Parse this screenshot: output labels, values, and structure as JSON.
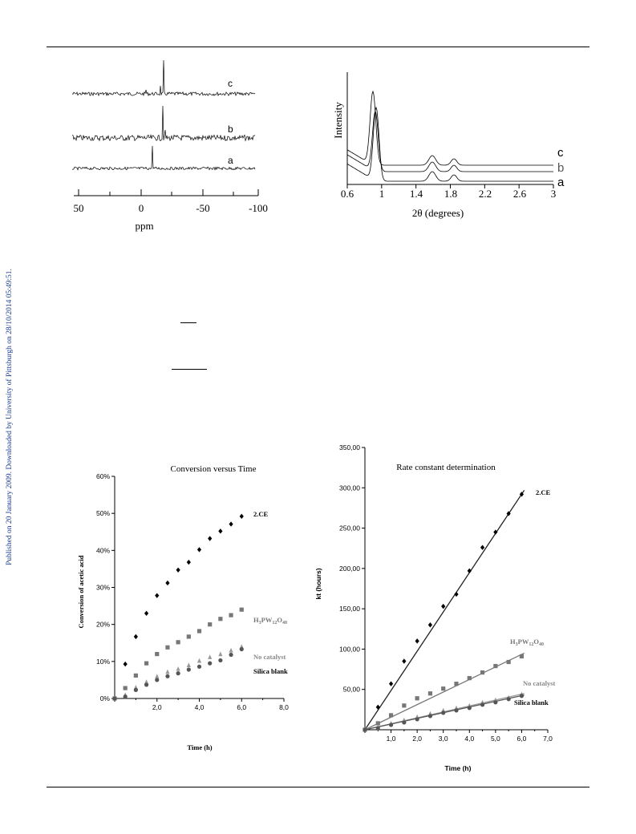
{
  "side_note": "Published on 20 January 2009. Downloaded by University of Pittsburgh on 28/10/2014 05:49:51.",
  "nmr": {
    "xlabel": "ppm",
    "ticks": [
      "50",
      "0",
      "-50",
      "-100"
    ],
    "traces": [
      "c",
      "b",
      "a"
    ]
  },
  "xrd": {
    "ylabel": "Intensity",
    "xlabel": "2θ (degrees)",
    "ticks": [
      "0.6",
      "1",
      "1.4",
      "1.8",
      "2.2",
      "2.6",
      "3"
    ],
    "traces": [
      "c",
      "b",
      "a"
    ]
  },
  "chart_data": [
    {
      "type": "scatter",
      "title": "Conversion versus Time",
      "xlabel": "Time (h)",
      "ylabel": "Conversion of acetic acid",
      "xlim": [
        0,
        8
      ],
      "ylim": [
        0,
        60
      ],
      "xticks": [
        "2,0",
        "4,0",
        "6,0",
        "8,0"
      ],
      "yticks": [
        "0%",
        "10%",
        "20%",
        "30%",
        "40%",
        "50%",
        "60%"
      ],
      "series": [
        {
          "name": "2.CE",
          "marker": "diamond",
          "color": "#000000",
          "x": [
            0,
            0.5,
            1.0,
            1.5,
            2.0,
            2.5,
            3.0,
            3.5,
            4.0,
            4.5,
            5.0,
            5.5,
            6.0
          ],
          "y": [
            0,
            9.3,
            16.7,
            23.0,
            27.8,
            31.2,
            34.7,
            36.8,
            40.2,
            43.2,
            45.2,
            47.1,
            49.2
          ]
        },
        {
          "name": "H3PW12O40",
          "marker": "square",
          "color": "#777777",
          "x": [
            0,
            0.5,
            1.0,
            1.5,
            2.0,
            2.5,
            3.0,
            3.5,
            4.0,
            4.5,
            5.0,
            5.5,
            6.0
          ],
          "y": [
            0,
            2.8,
            6.2,
            9.5,
            12.0,
            13.8,
            15.2,
            16.7,
            18.2,
            20.0,
            21.5,
            22.5,
            24.0
          ]
        },
        {
          "name": "No catalyst",
          "marker": "triangle",
          "color": "#999999",
          "x": [
            0,
            0.5,
            1.0,
            1.5,
            2.0,
            2.5,
            3.0,
            3.5,
            4.0,
            4.5,
            5.0,
            5.5,
            6.0
          ],
          "y": [
            0,
            1.0,
            3.0,
            4.5,
            6.0,
            7.2,
            8.0,
            9.0,
            10.2,
            11.2,
            12.0,
            13.0,
            14.0
          ]
        },
        {
          "name": "Silica blank",
          "marker": "circle",
          "color": "#555555",
          "x": [
            0,
            0.5,
            1.0,
            1.5,
            2.0,
            2.5,
            3.0,
            3.5,
            4.0,
            4.5,
            5.0,
            5.5,
            6.0
          ],
          "y": [
            0,
            0.5,
            2.3,
            3.7,
            5.0,
            6.0,
            6.8,
            7.8,
            8.6,
            9.5,
            10.3,
            11.8,
            13.3
          ]
        }
      ]
    },
    {
      "type": "scatter",
      "title": "Rate constant determination",
      "xlabel": "Time (h)",
      "ylabel": "kt (hours)",
      "xlim": [
        0,
        7
      ],
      "ylim": [
        0,
        350
      ],
      "xticks": [
        "1,0",
        "2,0",
        "3,0",
        "4,0",
        "5,0",
        "6,0",
        "7,0"
      ],
      "yticks": [
        "50,00",
        "100,00",
        "150,00",
        "200,00",
        "250,00",
        "300,00",
        "350,00"
      ],
      "series": [
        {
          "name": "2.CE",
          "marker": "diamond",
          "color": "#000000",
          "x": [
            0,
            0.5,
            1.0,
            1.5,
            2.0,
            2.5,
            3.0,
            3.5,
            4.0,
            4.5,
            5.0,
            5.5,
            6.0
          ],
          "y": [
            0,
            28,
            57,
            85,
            110,
            130,
            153,
            168,
            197,
            226,
            245,
            268,
            292
          ],
          "fit": [
            0,
            0,
            6.1,
            297
          ]
        },
        {
          "name": "H3PW12O40",
          "marker": "square",
          "color": "#777777",
          "x": [
            0,
            0.5,
            1.0,
            1.5,
            2.0,
            2.5,
            3.0,
            3.5,
            4.0,
            4.5,
            5.0,
            5.5,
            6.0
          ],
          "y": [
            0,
            8,
            18,
            30,
            39,
            45,
            51,
            57,
            64,
            71,
            79,
            84,
            91
          ],
          "fit": [
            0,
            0,
            6.1,
            95
          ]
        },
        {
          "name": "No catalyst",
          "marker": "triangle",
          "color": "#999999",
          "x": [
            0,
            0.5,
            1.0,
            1.5,
            2.0,
            2.5,
            3.0,
            3.5,
            4.0,
            4.5,
            5.0,
            5.5,
            6.0
          ],
          "y": [
            0,
            3,
            8,
            12,
            16,
            20,
            24,
            27,
            30,
            34,
            37,
            40,
            44
          ],
          "fit": [
            0,
            0,
            6.1,
            45
          ]
        },
        {
          "name": "Silica blank",
          "marker": "circle",
          "color": "#555555",
          "x": [
            0,
            0.5,
            1.0,
            1.5,
            2.0,
            2.5,
            3.0,
            3.5,
            4.0,
            4.5,
            5.0,
            5.5,
            6.0
          ],
          "y": [
            0,
            2,
            6,
            9,
            13,
            17,
            21,
            24,
            27,
            31,
            34,
            38,
            42
          ],
          "fit": [
            0,
            0,
            6.1,
            43
          ]
        }
      ]
    }
  ]
}
